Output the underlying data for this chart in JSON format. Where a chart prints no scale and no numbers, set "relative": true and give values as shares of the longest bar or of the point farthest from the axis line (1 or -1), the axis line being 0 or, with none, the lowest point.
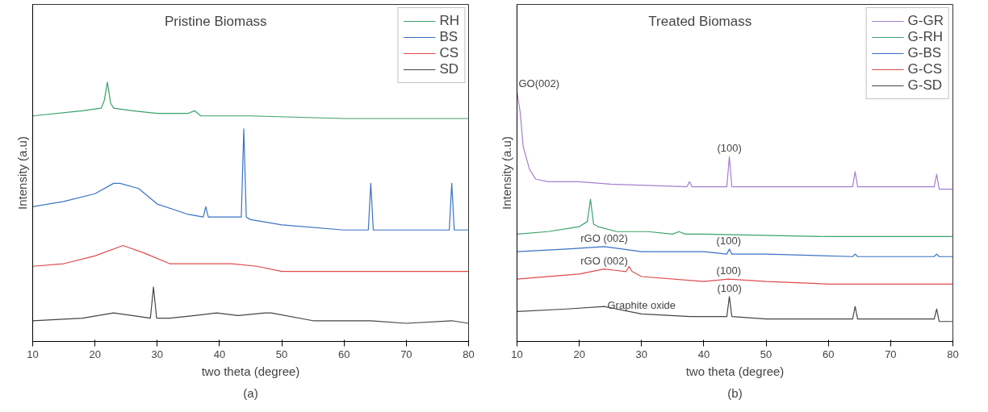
{
  "chart_data": [
    {
      "type": "line",
      "title": "Pristine Biomass",
      "xlabel": "two theta (degree)",
      "ylabel": "Intensity (a.u)",
      "relative": true,
      "xlim": [
        10,
        80
      ],
      "xticks": [
        10,
        20,
        30,
        40,
        50,
        60,
        70,
        80
      ],
      "grid": false,
      "legend": "top right",
      "annotations": [
        "(a)"
      ],
      "series": [
        {
          "name": "RH",
          "color": "#3aa26a",
          "x": [
            10,
            18,
            21,
            21.5,
            22,
            22.5,
            23,
            26,
            30,
            35,
            36,
            37,
            45,
            60,
            80
          ],
          "values": [
            0.87,
            0.89,
            0.9,
            0.93,
            1.0,
            0.92,
            0.9,
            0.89,
            0.88,
            0.88,
            0.89,
            0.87,
            0.87,
            0.86,
            0.86
          ]
        },
        {
          "name": "BS",
          "color": "#3a72c4",
          "x": [
            10,
            15,
            20,
            23,
            24,
            27,
            30,
            35,
            37.4,
            37.8,
            38.2,
            43.5,
            43.9,
            44.3,
            45,
            50,
            60,
            63.9,
            64.3,
            64.7,
            66,
            76.9,
            77.3,
            77.7,
            80
          ],
          "values": [
            0.52,
            0.54,
            0.57,
            0.61,
            0.61,
            0.59,
            0.53,
            0.49,
            0.48,
            0.52,
            0.48,
            0.48,
            0.82,
            0.48,
            0.47,
            0.45,
            0.43,
            0.43,
            0.61,
            0.43,
            0.43,
            0.43,
            0.61,
            0.43,
            0.43
          ]
        },
        {
          "name": "CS",
          "color": "#e04a4a",
          "x": [
            10,
            15,
            20,
            24.5,
            28,
            32,
            37,
            42,
            46,
            50,
            60,
            70,
            80
          ],
          "values": [
            0.29,
            0.3,
            0.33,
            0.37,
            0.34,
            0.3,
            0.3,
            0.3,
            0.29,
            0.27,
            0.27,
            0.27,
            0.27
          ]
        },
        {
          "name": "SD",
          "color": "#444444",
          "x": [
            10,
            18,
            23,
            26,
            28.9,
            29.4,
            29.9,
            32,
            36,
            39.5,
            43,
            47.3,
            48.3,
            55,
            64.3,
            70,
            77.3,
            80
          ],
          "values": [
            0.08,
            0.09,
            0.11,
            0.1,
            0.09,
            0.21,
            0.09,
            0.09,
            0.1,
            0.11,
            0.1,
            0.11,
            0.11,
            0.08,
            0.08,
            0.07,
            0.08,
            0.07
          ]
        }
      ]
    },
    {
      "type": "line",
      "title": "Treated Biomass",
      "xlabel": "two theta (degree)",
      "ylabel": "Intensity (a.u)",
      "relative": true,
      "xlim": [
        10,
        80
      ],
      "xticks": [
        10,
        20,
        30,
        40,
        50,
        60,
        70,
        80
      ],
      "grid": false,
      "legend": "top right",
      "annotations": [
        {
          "text": "GO(002)",
          "x": 10,
          "y": 1.0
        },
        {
          "text": "(100)",
          "x": 44.1,
          "y": 0.74
        },
        {
          "text": "rGO (002)",
          "x": 24,
          "y": 0.38
        },
        {
          "text": "(100)",
          "x": 44,
          "y": 0.37
        },
        {
          "text": "rGO (002)",
          "x": 24,
          "y": 0.29
        },
        {
          "text": "(100)",
          "x": 44,
          "y": 0.25
        },
        {
          "text": "(100)",
          "x": 44.1,
          "y": 0.18
        },
        {
          "text": "Graphite oxide",
          "x": 30,
          "y": 0.11
        },
        "(b)"
      ],
      "series": [
        {
          "name": "G-GR",
          "color": "#a77fcf",
          "x": [
            10,
            10.5,
            11,
            12,
            13,
            15,
            20,
            25,
            37.3,
            37.7,
            38.1,
            43.7,
            44.1,
            44.5,
            50,
            63.9,
            64.3,
            64.7,
            66,
            77,
            77.4,
            77.8,
            80
          ],
          "values": [
            1.0,
            0.92,
            0.78,
            0.69,
            0.65,
            0.64,
            0.64,
            0.63,
            0.62,
            0.64,
            0.62,
            0.62,
            0.74,
            0.62,
            0.62,
            0.62,
            0.68,
            0.62,
            0.62,
            0.62,
            0.67,
            0.61,
            0.61
          ]
        },
        {
          "name": "G-RH",
          "color": "#3aa26a",
          "x": [
            10,
            15,
            20,
            21.3,
            21.8,
            22.3,
            23,
            26,
            31,
            35,
            36,
            37,
            40,
            60,
            80
          ],
          "values": [
            0.43,
            0.44,
            0.46,
            0.48,
            0.57,
            0.47,
            0.46,
            0.44,
            0.44,
            0.43,
            0.44,
            0.43,
            0.43,
            0.42,
            0.42
          ]
        },
        {
          "name": "G-BS",
          "color": "#3a72c4",
          "x": [
            10,
            18,
            24,
            30,
            40,
            43.7,
            44.1,
            44.5,
            50,
            63.9,
            64.3,
            64.7,
            77,
            77.4,
            77.8,
            80
          ],
          "values": [
            0.36,
            0.37,
            0.38,
            0.36,
            0.36,
            0.35,
            0.37,
            0.35,
            0.35,
            0.34,
            0.35,
            0.34,
            0.34,
            0.35,
            0.34,
            0.34
          ]
        },
        {
          "name": "G-CS",
          "color": "#e04a4a",
          "x": [
            10,
            20,
            24,
            27.5,
            28,
            28.5,
            30,
            40,
            44,
            50,
            60,
            80
          ],
          "values": [
            0.25,
            0.27,
            0.29,
            0.28,
            0.3,
            0.28,
            0.26,
            0.24,
            0.25,
            0.24,
            0.23,
            0.23
          ]
        },
        {
          "name": "G-SD",
          "color": "#444444",
          "x": [
            10,
            18,
            24,
            30,
            37.8,
            43.7,
            44.1,
            44.5,
            50,
            63.9,
            64.3,
            64.7,
            66,
            77,
            77.4,
            77.8,
            80
          ],
          "values": [
            0.12,
            0.13,
            0.14,
            0.11,
            0.1,
            0.1,
            0.18,
            0.1,
            0.09,
            0.09,
            0.14,
            0.09,
            0.09,
            0.09,
            0.13,
            0.08,
            0.08
          ]
        }
      ]
    }
  ]
}
